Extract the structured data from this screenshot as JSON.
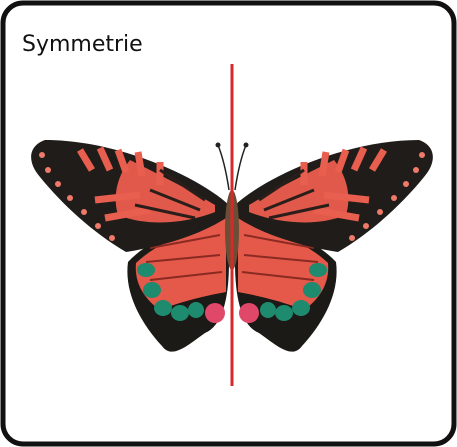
{
  "card": {
    "title": "Symmetrie"
  }
}
